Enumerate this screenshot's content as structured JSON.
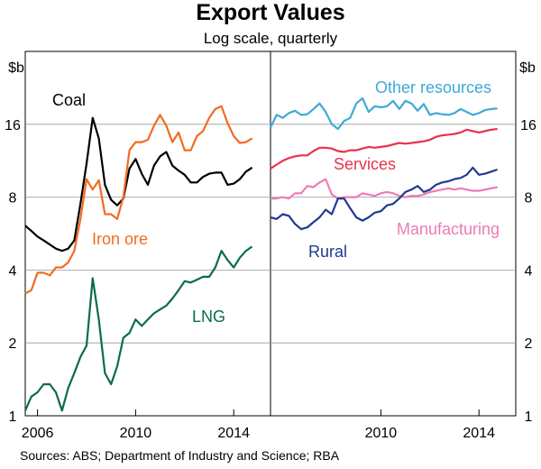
{
  "chart_data": {
    "type": "line",
    "title": "Export Values",
    "subtitle": "Log scale, quarterly",
    "yunit": "$b",
    "yscale": "log2",
    "ylim": [
      1,
      32
    ],
    "yticks": [
      1,
      2,
      4,
      8,
      16
    ],
    "source": "Sources:   ABS; Department of Industry and Science; RBA",
    "panels": [
      {
        "id": "left",
        "xlim": [
          2005.5,
          2015.5
        ],
        "xticks": [
          2006,
          2010,
          2014
        ],
        "series": [
          {
            "name": "Coal",
            "label": "Coal",
            "color": "#000000",
            "x": [
              2005.5,
              2005.75,
              2006,
              2006.25,
              2006.5,
              2006.75,
              2007,
              2007.25,
              2007.5,
              2007.75,
              2008,
              2008.25,
              2008.5,
              2008.75,
              2009,
              2009.25,
              2009.5,
              2009.75,
              2010,
              2010.25,
              2010.5,
              2010.75,
              2011,
              2011.25,
              2011.5,
              2011.75,
              2012,
              2012.25,
              2012.5,
              2012.75,
              2013,
              2013.25,
              2013.5,
              2013.75,
              2014,
              2014.25,
              2014.5,
              2014.75
            ],
            "y": [
              6.1,
              5.8,
              5.5,
              5.3,
              5.1,
              4.9,
              4.8,
              4.9,
              5.3,
              7.5,
              11,
              17,
              14,
              9,
              7.8,
              7.4,
              7.9,
              10.5,
              11.5,
              10,
              9,
              10.8,
              11.8,
              12.3,
              10.8,
              10.3,
              9.9,
              9.2,
              9.2,
              9.7,
              10,
              10.1,
              10.1,
              9.0,
              9.1,
              9.5,
              10.2,
              10.6
            ]
          },
          {
            "name": "Iron ore",
            "label": "Iron ore",
            "color": "#f26b21",
            "x": [
              2005.5,
              2005.75,
              2006,
              2006.25,
              2006.5,
              2006.75,
              2007,
              2007.25,
              2007.5,
              2007.75,
              2008,
              2008.25,
              2008.5,
              2008.75,
              2009,
              2009.25,
              2009.5,
              2009.75,
              2010,
              2010.25,
              2010.5,
              2010.75,
              2011,
              2011.25,
              2011.5,
              2011.75,
              2012,
              2012.25,
              2012.5,
              2012.75,
              2013,
              2013.25,
              2013.5,
              2013.75,
              2014,
              2014.25,
              2014.5,
              2014.75
            ],
            "y": [
              3.2,
              3.3,
              3.9,
              3.9,
              3.8,
              4.1,
              4.1,
              4.3,
              4.8,
              6.5,
              9.5,
              8.6,
              9.4,
              6.8,
              6.8,
              6.5,
              8.0,
              12.5,
              13.5,
              13.5,
              13.8,
              15.8,
              17.5,
              15.8,
              13.5,
              14.8,
              12.5,
              12.5,
              14.3,
              15,
              17,
              18.5,
              19,
              16.2,
              14.3,
              13.4,
              13.5,
              14
            ]
          }
        ],
        "series2": [
          {
            "name": "LNG",
            "label": "LNG",
            "color": "#0c6b4f",
            "x": [
              2005.5,
              2005.75,
              2006,
              2006.25,
              2006.5,
              2006.75,
              2007,
              2007.25,
              2007.5,
              2007.75,
              2008,
              2008.25,
              2008.5,
              2008.75,
              2009,
              2009.25,
              2009.5,
              2009.75,
              2010,
              2010.25,
              2010.5,
              2010.75,
              2011,
              2011.25,
              2011.5,
              2011.75,
              2012,
              2012.25,
              2012.5,
              2012.75,
              2013,
              2013.25,
              2013.5,
              2013.75,
              2014,
              2014.25,
              2014.5,
              2014.75
            ],
            "y": [
              1.05,
              1.2,
              1.25,
              1.35,
              1.35,
              1.25,
              1.05,
              1.3,
              1.5,
              1.75,
              1.95,
              3.7,
              2.5,
              1.5,
              1.35,
              1.6,
              2.1,
              2.2,
              2.5,
              2.35,
              2.5,
              2.65,
              2.75,
              2.85,
              3.05,
              3.3,
              3.6,
              3.55,
              3.65,
              3.75,
              3.75,
              4.1,
              4.8,
              4.4,
              4.1,
              4.5,
              4.8,
              5
            ]
          }
        ]
      },
      {
        "id": "right",
        "xlim": [
          2005.5,
          2015.5
        ],
        "xticks": [
          2010,
          2014
        ],
        "series": [
          {
            "name": "Other resources",
            "label": "Other resources",
            "color": "#3fa9d8",
            "x": [
              2005.5,
              2005.75,
              2006,
              2006.25,
              2006.5,
              2006.75,
              2007,
              2007.25,
              2007.5,
              2007.75,
              2008,
              2008.25,
              2008.5,
              2008.75,
              2009,
              2009.25,
              2009.5,
              2009.75,
              2010,
              2010.25,
              2010.5,
              2010.75,
              2011,
              2011.25,
              2011.5,
              2011.75,
              2012,
              2012.25,
              2012.5,
              2012.75,
              2013,
              2013.25,
              2013.5,
              2013.75,
              2014,
              2014.25,
              2014.5,
              2014.75
            ],
            "y": [
              15.5,
              17.5,
              17,
              17.8,
              18.2,
              17.5,
              17.6,
              18.5,
              19.5,
              18,
              16,
              15.3,
              16.5,
              17,
              19.5,
              20.5,
              18,
              19,
              18.8,
              19,
              20,
              18.5,
              20,
              19.5,
              18.2,
              19.4,
              17.5,
              17.8,
              17.6,
              17.5,
              17.8,
              18.5,
              18,
              17.5,
              17.8,
              18.3,
              18.5,
              18.6
            ]
          },
          {
            "name": "Services",
            "label": "Services",
            "color": "#e8334a",
            "x": [
              2005.5,
              2005.75,
              2006,
              2006.25,
              2006.5,
              2006.75,
              2007,
              2007.25,
              2007.5,
              2007.75,
              2008,
              2008.25,
              2008.5,
              2008.75,
              2009,
              2009.25,
              2009.5,
              2009.75,
              2010,
              2010.25,
              2010.5,
              2010.75,
              2011,
              2011.25,
              2011.5,
              2011.75,
              2012,
              2012.25,
              2012.5,
              2012.75,
              2013,
              2013.25,
              2013.5,
              2013.75,
              2014,
              2014.25,
              2014.5,
              2014.75
            ],
            "y": [
              10.5,
              10.9,
              11.3,
              11.6,
              11.8,
              11.9,
              11.9,
              12.4,
              12.8,
              12.8,
              12.7,
              12.4,
              12.3,
              12.5,
              12.5,
              12.7,
              12.9,
              12.8,
              12.9,
              13,
              13.2,
              13.4,
              13.3,
              13.4,
              13.5,
              13.6,
              13.8,
              14.2,
              14.4,
              14.5,
              14.6,
              14.8,
              15.2,
              15,
              14.8,
              15,
              15.2,
              15.3
            ]
          },
          {
            "name": "Manufacturing",
            "label": "Manufacturing",
            "color": "#ef7ab5",
            "x": [
              2005.5,
              2005.75,
              2006,
              2006.25,
              2006.5,
              2006.75,
              2007,
              2007.25,
              2007.5,
              2007.75,
              2008,
              2008.25,
              2008.5,
              2008.75,
              2009,
              2009.25,
              2009.5,
              2009.75,
              2010,
              2010.25,
              2010.5,
              2010.75,
              2011,
              2011.25,
              2011.5,
              2011.75,
              2012,
              2012.25,
              2012.5,
              2012.75,
              2013,
              2013.25,
              2013.5,
              2013.75,
              2014,
              2014.25,
              2014.5,
              2014.75
            ],
            "y": [
              7.9,
              7.9,
              8.0,
              7.9,
              8.3,
              8.3,
              8.9,
              8.8,
              9.2,
              9.5,
              8.2,
              7.9,
              8.0,
              8.0,
              8.0,
              8.3,
              8.2,
              8.1,
              8.3,
              8.4,
              8.3,
              8.1,
              8.0,
              8.1,
              8.1,
              8.2,
              8.4,
              8.5,
              8.6,
              8.7,
              8.6,
              8.7,
              8.6,
              8.5,
              8.5,
              8.6,
              8.7,
              8.8
            ]
          },
          {
            "name": "Rural",
            "label": "Rural",
            "color": "#1f3a93",
            "x": [
              2005.5,
              2005.75,
              2006,
              2006.25,
              2006.5,
              2006.75,
              2007,
              2007.25,
              2007.5,
              2007.75,
              2008,
              2008.25,
              2008.5,
              2008.75,
              2009,
              2009.25,
              2009.5,
              2009.75,
              2010,
              2010.25,
              2010.5,
              2010.75,
              2011,
              2011.25,
              2011.5,
              2011.75,
              2012,
              2012.25,
              2012.5,
              2012.75,
              2013,
              2013.25,
              2013.5,
              2013.75,
              2014,
              2014.25,
              2014.5,
              2014.75
            ],
            "y": [
              6.6,
              6.5,
              6.8,
              6.7,
              6.2,
              5.9,
              6.0,
              6.3,
              6.6,
              7.1,
              6.8,
              7.9,
              7.9,
              7.2,
              6.6,
              6.4,
              6.6,
              6.9,
              7.0,
              7.4,
              7.5,
              7.9,
              8.4,
              8.6,
              8.9,
              8.4,
              8.6,
              9.0,
              9.2,
              9.3,
              9.5,
              9.6,
              9.9,
              10.6,
              9.9,
              10.0,
              10.2,
              10.4
            ]
          }
        ]
      }
    ]
  }
}
